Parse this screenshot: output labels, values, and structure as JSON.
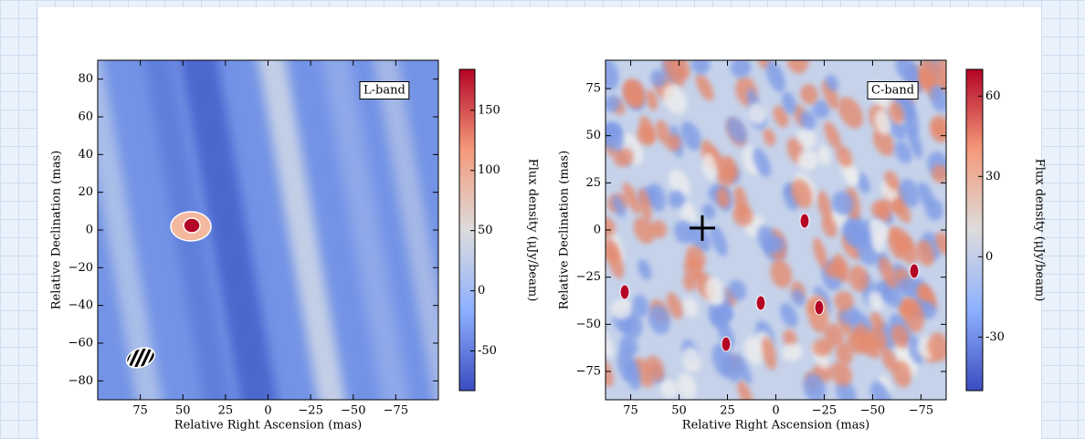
{
  "chart_data": [
    {
      "type": "heatmap",
      "annotation": "L-band",
      "xlabel": "Relative Right Ascension (mas)",
      "ylabel": "Relative Declination (mas)",
      "xlim": [
        100,
        -100
      ],
      "ylim": [
        -90,
        90
      ],
      "xticks": [
        75,
        50,
        25,
        0,
        {
          "value": -25,
          "label": "−25"
        },
        {
          "value": -50,
          "label": "−50"
        },
        {
          "value": -75,
          "label": "−75"
        }
      ],
      "yticks": [
        {
          "value": -80,
          "label": "−80"
        },
        {
          "value": -60,
          "label": "−60"
        },
        {
          "value": -40,
          "label": "−40"
        },
        {
          "value": -20,
          "label": "−20"
        },
        0,
        20,
        40,
        60,
        80
      ],
      "colorbar": {
        "label": "Flux density (μJy/beam)",
        "lim": [
          -83,
          184
        ],
        "ticks": [
          {
            "value": -50,
            "label": "-50"
          },
          0,
          50,
          100,
          150
        ],
        "colors": [
          "#3b4cc0",
          "#8db0fe",
          "#dddcdc",
          "#f49a7b",
          "#b40426"
        ]
      }
    },
    {
      "type": "heatmap",
      "annotation": "C-band",
      "xlabel": "Relative Right Ascension (mas)",
      "ylabel": "Relative Declination (mas)",
      "xlim": [
        88,
        -88
      ],
      "ylim": [
        -90,
        90
      ],
      "xticks": [
        75,
        50,
        25,
        0,
        {
          "value": -25,
          "label": "−25"
        },
        {
          "value": -50,
          "label": "−50"
        },
        {
          "value": -75,
          "label": "−75"
        }
      ],
      "yticks": [
        {
          "value": -75,
          "label": "−75"
        },
        {
          "value": -50,
          "label": "−50"
        },
        {
          "value": -25,
          "label": "−25"
        },
        0,
        25,
        50,
        75
      ],
      "marker": {
        "x": 38,
        "y": 1
      },
      "colorbar": {
        "label": "Flux density (μJy/beam)",
        "lim": [
          -50,
          70
        ],
        "ticks": [
          {
            "value": -30,
            "label": "-30"
          },
          0,
          30,
          60
        ],
        "colors": [
          "#3b4cc0",
          "#8db0fe",
          "#dddcdc",
          "#f49a7b",
          "#b40426"
        ]
      }
    }
  ]
}
